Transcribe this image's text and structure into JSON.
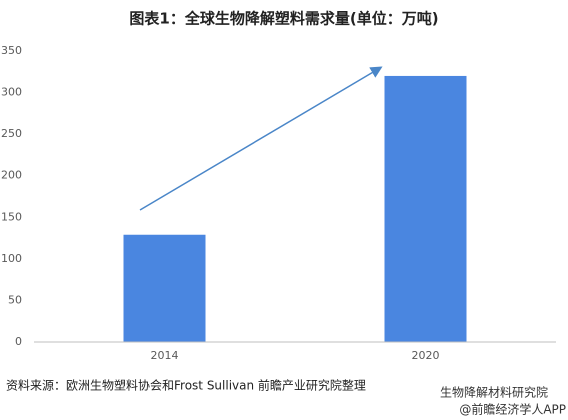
{
  "chart_data": {
    "type": "bar",
    "title": "图表1：全球生物降解塑料需求量(单位：万吨)",
    "categories": [
      "2014",
      "2020"
    ],
    "values": [
      129,
      320
    ],
    "color": "#4a86e0",
    "ylim": [
      0,
      350
    ],
    "yticks": [
      0,
      50,
      100,
      150,
      200,
      250,
      300,
      350
    ],
    "source": "资料来源：欧洲生物塑料协会和Frost Sullivan 前瞻产业研究院整理",
    "watermark": [
      "生物降解材料研究院",
      "@前瞻经济学人APP"
    ]
  }
}
